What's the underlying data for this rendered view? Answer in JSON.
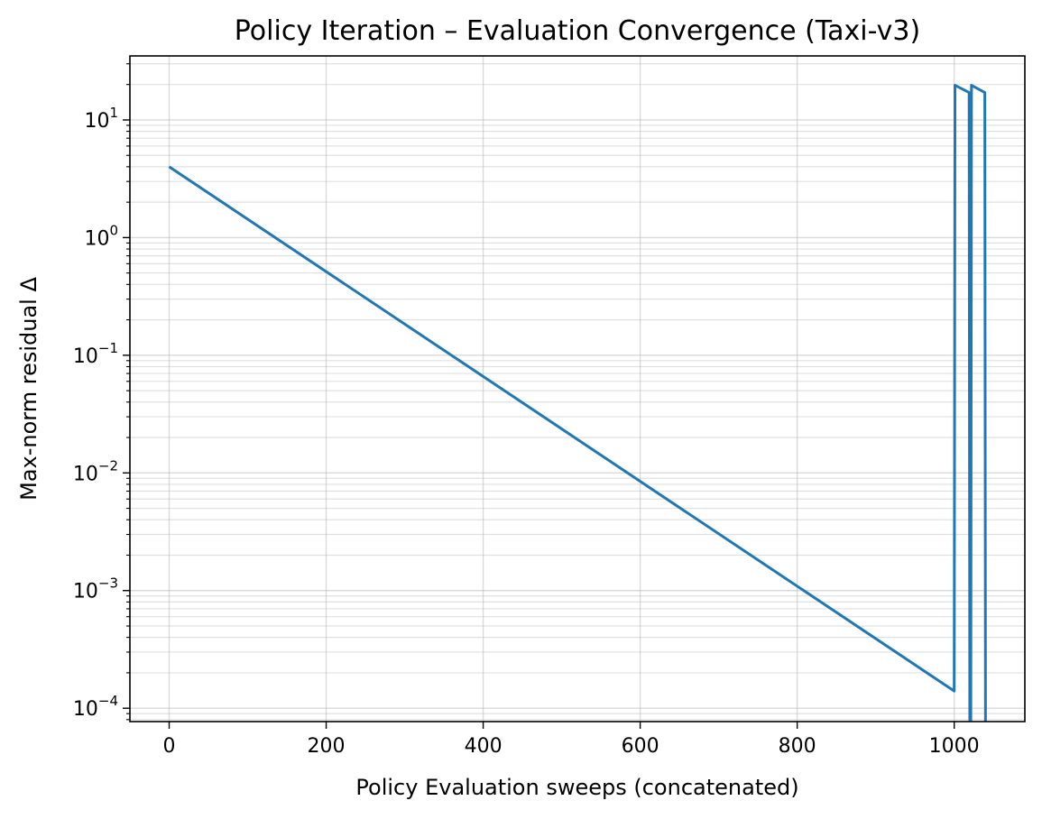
{
  "chart_data": {
    "type": "line",
    "title": "Policy Iteration – Evaluation Convergence (Taxi-v3)",
    "xlabel": "Policy Evaluation sweeps (concatenated)",
    "ylabel": "Max-norm residual Δ",
    "xlim": [
      -50,
      1090
    ],
    "ylim": [
      7.7e-05,
      35
    ],
    "yscale": "log",
    "grid": true,
    "x_ticks": [
      {
        "value": 0,
        "label": "0"
      },
      {
        "value": 200,
        "label": "200"
      },
      {
        "value": 400,
        "label": "400"
      },
      {
        "value": 600,
        "label": "600"
      },
      {
        "value": 800,
        "label": "800"
      },
      {
        "value": 1000,
        "label": "1000"
      }
    ],
    "y_ticks": [
      {
        "value": 0.0001,
        "base": "10",
        "exp": "−4"
      },
      {
        "value": 0.001,
        "base": "10",
        "exp": "−3"
      },
      {
        "value": 0.01,
        "base": "10",
        "exp": "−2"
      },
      {
        "value": 0.1,
        "base": "10",
        "exp": "−1"
      },
      {
        "value": 1,
        "base": "10",
        "exp": "0"
      },
      {
        "value": 10,
        "base": "10",
        "exp": "1"
      }
    ],
    "series": [
      {
        "color": "#1f77b4",
        "points": [
          [
            0,
            4.0
          ],
          [
            1000,
            0.00014
          ],
          [
            1001,
            19.7
          ],
          [
            1019,
            17.1
          ],
          [
            1020,
            1e-05
          ],
          [
            1021,
            1e-05
          ],
          [
            1022,
            19.7
          ],
          [
            1039,
            17.1
          ],
          [
            1040,
            1e-05
          ]
        ]
      }
    ]
  }
}
